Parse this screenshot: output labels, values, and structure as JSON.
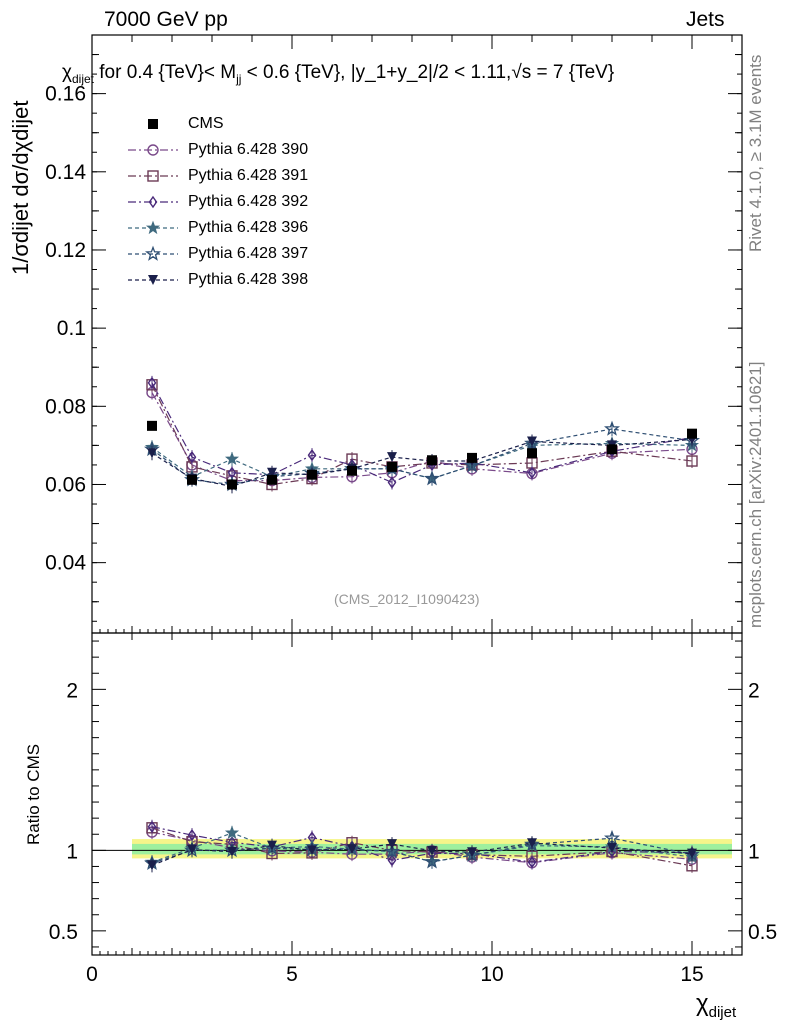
{
  "header": {
    "left": "7000 GeV pp",
    "right": "Jets"
  },
  "side_labels": {
    "rivet": "Rivet 4.1.0, ≥ 3.1M events",
    "mcplots": "mcplots.cern.ch [arXiv:2401.10621]"
  },
  "chart_data": {
    "type": "scatter",
    "title": "χdijet for 0.4 {TeV}< Mjj < 0.6 {TeV}, |y_1+y_2|/2 < 1.11,√s = 7 {TeV}",
    "title_prefix": "χ",
    "title_prefix_sub": "dijet",
    "title_main": " for 0.4 {TeV}< M",
    "title_main_sub": "jj",
    "title_rest": " < 0.6 {TeV}, |y_1+y_2|/2 < 1.11,√s = 7 {TeV}",
    "watermark": "(CMS_2012_I1090423)",
    "xlabel": "χdijet",
    "xlabel_main": "χ",
    "xlabel_sub": "dijet",
    "ylabel": "1/σdijet dσ/dχdijet",
    "ratio_ylabel": "Ratio to CMS",
    "xlim": [
      0,
      16.25
    ],
    "ylim": [
      0.022,
      0.175
    ],
    "ratio_ylim": [
      0.35,
      2.35
    ],
    "x_ticks": [
      "0",
      "5",
      "10",
      "15"
    ],
    "y_ticks": [
      "0.04",
      "0.06",
      "0.08",
      "0.1",
      "0.12",
      "0.14",
      "0.16"
    ],
    "ratio_ticks": [
      "0.5",
      "1",
      "2"
    ],
    "x": [
      1.5,
      2.5,
      3.5,
      4.5,
      5.5,
      6.5,
      7.5,
      8.5,
      9.5,
      11,
      13,
      15
    ],
    "cms": {
      "name": "CMS",
      "color": "#000000",
      "values": [
        0.075,
        0.0612,
        0.06,
        0.0612,
        0.0625,
        0.0635,
        0.0645,
        0.0662,
        0.0668,
        0.068,
        0.069,
        0.073
      ]
    },
    "series": [
      {
        "name": "Pythia 6.428 390",
        "marker": "circle-open",
        "dash": "8,3,2,3",
        "color": "#7a4a8a",
        "values": [
          0.0835,
          0.065,
          0.061,
          0.061,
          0.0618,
          0.062,
          0.063,
          0.066,
          0.064,
          0.0628,
          0.068,
          0.069
        ]
      },
      {
        "name": "Pythia 6.428 391",
        "marker": "square-open",
        "dash": "8,3,2,3",
        "color": "#6b3a55",
        "values": [
          0.0855,
          0.0645,
          0.0622,
          0.06,
          0.0615,
          0.0665,
          0.0645,
          0.0655,
          0.065,
          0.0655,
          0.0685,
          0.066
        ]
      },
      {
        "name": "Pythia 6.428 392",
        "marker": "diamond-open",
        "dash": "8,3,2,3",
        "color": "#4a2a7a",
        "values": [
          0.086,
          0.067,
          0.063,
          0.0625,
          0.0675,
          0.065,
          0.0605,
          0.065,
          0.0655,
          0.063,
          0.0685,
          0.072
        ]
      },
      {
        "name": "Pythia 6.428 396",
        "marker": "star-filled",
        "dash": "4,3",
        "color": "#3f6a7f",
        "values": [
          0.0695,
          0.062,
          0.0665,
          0.062,
          0.064,
          0.064,
          0.064,
          0.0615,
          0.0648,
          0.07,
          0.0705,
          0.07
        ]
      },
      {
        "name": "Pythia 6.428 397",
        "marker": "star-open",
        "dash": "4,3",
        "color": "#2f4f73",
        "values": [
          0.069,
          0.0612,
          0.06,
          0.062,
          0.0628,
          0.064,
          0.064,
          0.0615,
          0.0648,
          0.0705,
          0.0742,
          0.0712
        ]
      },
      {
        "name": "Pythia 6.428 398",
        "marker": "triangle-down-filled",
        "dash": "4,3",
        "color": "#1a1f4a",
        "values": [
          0.068,
          0.0615,
          0.0595,
          0.063,
          0.0625,
          0.064,
          0.067,
          0.066,
          0.066,
          0.071,
          0.07,
          0.0715
        ]
      }
    ],
    "legend_position": "top-left"
  }
}
